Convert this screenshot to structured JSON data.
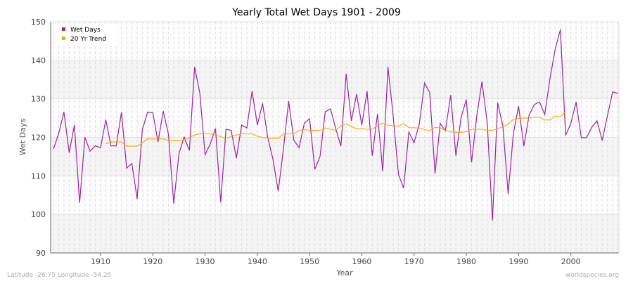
{
  "chart_data": {
    "type": "line",
    "title": "Yearly Total Wet Days 1901 - 2009",
    "xlabel": "Year",
    "ylabel": "Wet Days",
    "xlim": [
      1901,
      2009
    ],
    "ylim": [
      90,
      150
    ],
    "xticks": [
      1910,
      1920,
      1930,
      1940,
      1950,
      1960,
      1970,
      1980,
      1990,
      2000
    ],
    "yticks": [
      90,
      100,
      110,
      120,
      130,
      140,
      150
    ],
    "grid": true,
    "legend_position": "top-left",
    "series": [
      {
        "name": "Wet Days",
        "color": "#a020a8",
        "x_start": 1901,
        "values": [
          117,
          121,
          126.6,
          116,
          123.2,
          103,
          120,
          116.4,
          117.8,
          117.3,
          124.6,
          117.8,
          117.8,
          126.5,
          112,
          113.2,
          104,
          122,
          126.5,
          126.4,
          118.8,
          126.8,
          120.8,
          102.8,
          115.7,
          120.1,
          116.6,
          138.3,
          131.5,
          115.5,
          118.3,
          122.3,
          103.1,
          122.1,
          121.8,
          114.6,
          123.2,
          122.4,
          132,
          123.2,
          128.8,
          120,
          114.3,
          106,
          117,
          129.4,
          119.2,
          117.3,
          123.7,
          124.8,
          111.7,
          115,
          126.6,
          127.4,
          122.3,
          117.7,
          136.5,
          124.3,
          131.2,
          123.2,
          132,
          115.2,
          126.1,
          111.2,
          138.3,
          125.6,
          110.4,
          106.8,
          121.4,
          118.6,
          123.5,
          134.1,
          131.6,
          110.6,
          123.6,
          121.7,
          131,
          115.2,
          125.2,
          129.8,
          113.5,
          125.6,
          134.5,
          123.7,
          98.4,
          129,
          122.8,
          105.3,
          121,
          128.1,
          117.7,
          125.7,
          128.5,
          129.2,
          125.9,
          135.2,
          142.9,
          148,
          120.5,
          123.6,
          129.2,
          119.9,
          119.9,
          122.6,
          124.3,
          119.2,
          125.6,
          131.8,
          131.4
        ]
      },
      {
        "name": "20 Yr Trend",
        "color": "#ffa500",
        "x_start": 1911,
        "values": [
          118.3,
          118.8,
          118.8,
          118.8,
          117.7,
          117.7,
          117.7,
          118.5,
          119.6,
          119.6,
          119.6,
          119.6,
          119.1,
          119.2,
          119.1,
          119.3,
          120,
          120.6,
          120.9,
          120.9,
          120.9,
          120.6,
          120.2,
          119.7,
          120.2,
          120.6,
          120.9,
          120.9,
          120.9,
          120.3,
          120,
          119.8,
          119.7,
          119.7,
          120.9,
          120.9,
          120.9,
          121.8,
          122,
          121.8,
          121.8,
          121.8,
          122.4,
          122.1,
          121.8,
          123,
          123.5,
          122.8,
          122.2,
          122.3,
          122.1,
          122.1,
          123,
          123.7,
          123.1,
          123,
          122.8,
          123.6,
          122.5,
          122.5,
          122.4,
          122,
          121.7,
          122.6,
          122.4,
          121.8,
          121.5,
          121.3,
          121.3,
          121.5,
          122.1,
          122.1,
          122.1,
          121.8,
          121.8,
          122.2,
          122.8,
          123.4,
          124.7,
          124.9,
          125,
          125,
          125.2,
          125.2,
          124.5,
          124.5,
          125.5,
          125.4,
          126.7
        ]
      }
    ]
  },
  "footer": {
    "location": "Latitude -26.75 Longitude -54.25",
    "source": "worldspecies.org"
  }
}
